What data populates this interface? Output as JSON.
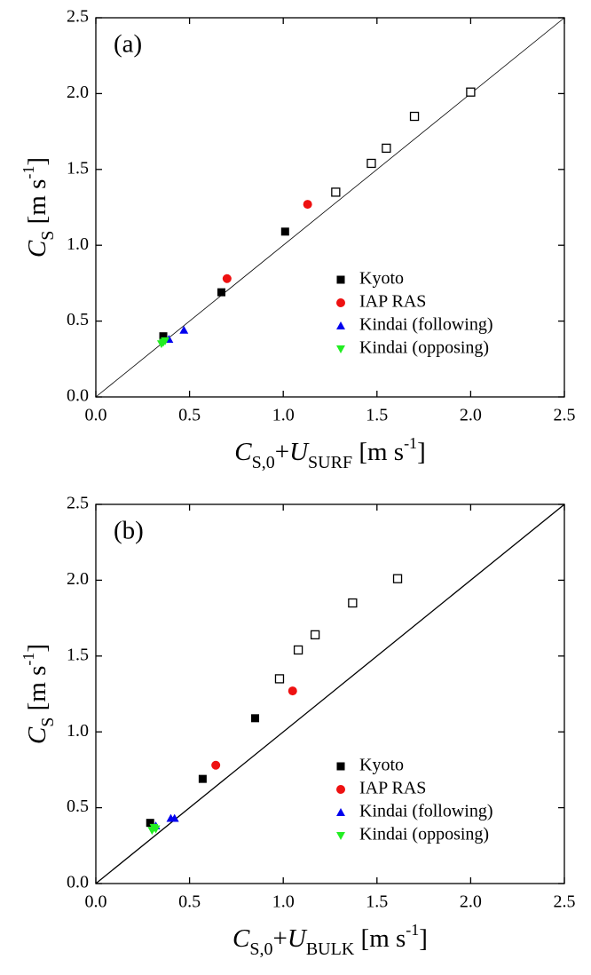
{
  "chart_data": [
    {
      "type": "scatter",
      "panel_label": "(a)",
      "xlabel": [
        {
          "text": "C",
          "style": "italic"
        },
        {
          "text": "S,0",
          "style": "sub"
        },
        {
          "text": "+",
          "style": "normal"
        },
        {
          "text": "U",
          "style": "italic"
        },
        {
          "text": "SURF",
          "style": "sub"
        },
        {
          "text": " [m s",
          "style": "normal"
        },
        {
          "text": "-1",
          "style": "sup"
        },
        {
          "text": "]",
          "style": "normal"
        }
      ],
      "ylabel": [
        {
          "text": "C",
          "style": "italic"
        },
        {
          "text": "S",
          "style": "sub"
        },
        {
          "text": " [m s",
          "style": "normal"
        },
        {
          "text": "-1",
          "style": "sup"
        },
        {
          "text": "]",
          "style": "normal"
        }
      ],
      "xlim": [
        0,
        2.5
      ],
      "ylim": [
        0,
        2.5
      ],
      "xticks": [
        {
          "value": 0,
          "label": "0.0"
        },
        0.5,
        {
          "value": 1,
          "label": "1.0"
        },
        1.5,
        {
          "value": 2,
          "label": "2.0"
        },
        2.5
      ],
      "yticks": [
        {
          "value": 0,
          "label": "0.0"
        },
        0.5,
        {
          "value": 1,
          "label": "1.0"
        },
        1.5,
        {
          "value": 2,
          "label": "2.0"
        },
        2.5
      ],
      "legend": "lower right",
      "series": [
        {
          "name": "Kyoto",
          "color": "#000000",
          "marker": "square",
          "filled": true,
          "x": [
            0.36,
            0.67,
            1.01
          ],
          "y": [
            0.4,
            0.69,
            1.09
          ]
        },
        {
          "color": "#000000",
          "marker": "square",
          "filled": false,
          "x": [
            1.28,
            1.47,
            1.55,
            1.7,
            2.0
          ],
          "y": [
            1.35,
            1.54,
            1.64,
            1.85,
            2.01
          ]
        },
        {
          "name": "IAP RAS",
          "color": "#ee1111",
          "marker": "circle",
          "filled": true,
          "x": [
            0.7,
            1.13
          ],
          "y": [
            0.78,
            1.27
          ]
        },
        {
          "name": "Kindai (following)",
          "color": "#0000ee",
          "marker": "triangle-up",
          "filled": true,
          "x": [
            0.39,
            0.47
          ],
          "y": [
            0.38,
            0.44
          ]
        },
        {
          "name": "Kindai (opposing)",
          "color": "#22ee22",
          "marker": "triangle-down",
          "filled": true,
          "x": [
            0.35,
            0.36,
            0.37
          ],
          "y": [
            0.35,
            0.36,
            0.37
          ]
        }
      ]
    },
    {
      "type": "scatter",
      "panel_label": "(b)",
      "xlabel": [
        {
          "text": "C",
          "style": "italic"
        },
        {
          "text": "S,0",
          "style": "sub"
        },
        {
          "text": "+",
          "style": "normal"
        },
        {
          "text": "U",
          "style": "italic"
        },
        {
          "text": "BULK",
          "style": "sub"
        },
        {
          "text": " [m s",
          "style": "normal"
        },
        {
          "text": "-1",
          "style": "sup"
        },
        {
          "text": "]",
          "style": "normal"
        }
      ],
      "ylabel": [
        {
          "text": "C",
          "style": "italic"
        },
        {
          "text": "S",
          "style": "sub"
        },
        {
          "text": " [m s",
          "style": "normal"
        },
        {
          "text": "-1",
          "style": "sup"
        },
        {
          "text": "]",
          "style": "normal"
        }
      ],
      "xlim": [
        0,
        2.5
      ],
      "ylim": [
        0,
        2.5
      ],
      "xticks": [
        {
          "value": 0,
          "label": "0.0"
        },
        0.5,
        {
          "value": 1,
          "label": "1.0"
        },
        1.5,
        {
          "value": 2,
          "label": "2.0"
        },
        2.5
      ],
      "yticks": [
        {
          "value": 0,
          "label": "0.0"
        },
        0.5,
        {
          "value": 1,
          "label": "1.0"
        },
        1.5,
        {
          "value": 2,
          "label": "2.0"
        },
        2.5
      ],
      "legend": "lower right",
      "series": [
        {
          "name": "Kyoto",
          "color": "#000000",
          "marker": "square",
          "filled": true,
          "x": [
            0.29,
            0.57,
            0.85
          ],
          "y": [
            0.4,
            0.69,
            1.09
          ]
        },
        {
          "color": "#000000",
          "marker": "square",
          "filled": false,
          "x": [
            0.98,
            1.08,
            1.17,
            1.37,
            1.61
          ],
          "y": [
            1.35,
            1.54,
            1.64,
            1.85,
            2.01
          ]
        },
        {
          "name": "IAP RAS",
          "color": "#ee1111",
          "marker": "circle",
          "filled": true,
          "x": [
            0.64,
            1.05
          ],
          "y": [
            0.78,
            1.27
          ]
        },
        {
          "name": "Kindai (following)",
          "color": "#0000ee",
          "marker": "triangle-up",
          "filled": true,
          "x": [
            0.32,
            0.4,
            0.42
          ],
          "y": [
            0.38,
            0.43,
            0.43
          ]
        },
        {
          "name": "Kindai (opposing)",
          "color": "#22ee22",
          "marker": "triangle-down",
          "filled": true,
          "x": [
            0.3,
            0.31,
            0.32
          ],
          "y": [
            0.35,
            0.37,
            0.36
          ]
        }
      ]
    }
  ]
}
